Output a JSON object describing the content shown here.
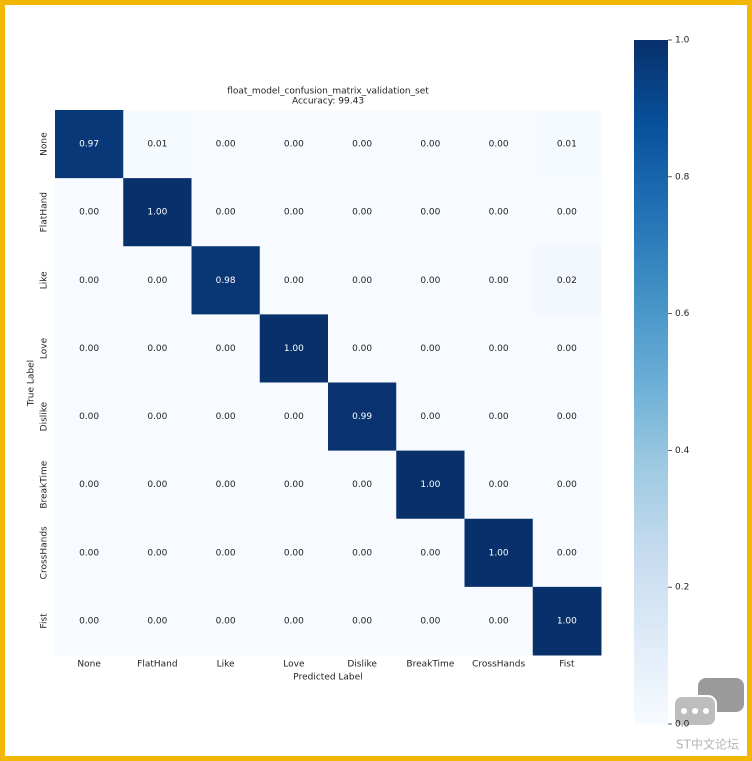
{
  "chart_data": {
    "type": "heatmap",
    "title": "float_model_confusion_matrix_validation_set",
    "subtitle": "Accuracy: 99.43",
    "x_label": "Predicted Label",
    "y_label": "True Label",
    "x_categories": [
      "None",
      "FlatHand",
      "Like",
      "Love",
      "Dislike",
      "BreakTime",
      "CrossHands",
      "Fist"
    ],
    "y_categories": [
      "None",
      "FlatHand",
      "Like",
      "Love",
      "Dislike",
      "BreakTime",
      "CrossHands",
      "Fist"
    ],
    "values": [
      [
        0.97,
        0.01,
        0,
        0,
        0,
        0,
        0,
        0.01
      ],
      [
        0,
        1,
        0,
        0,
        0,
        0,
        0,
        0
      ],
      [
        0,
        0,
        0.98,
        0,
        0,
        0,
        0,
        0.02
      ],
      [
        0,
        0,
        0,
        1,
        0,
        0,
        0,
        0
      ],
      [
        0,
        0,
        0,
        0,
        0.99,
        0,
        0,
        0
      ],
      [
        0,
        0,
        0,
        0,
        0,
        1,
        0,
        0
      ],
      [
        0,
        0,
        0,
        0,
        0,
        0,
        1,
        0
      ],
      [
        0,
        0,
        0,
        0,
        0,
        0,
        0,
        1
      ]
    ],
    "value_labels": [
      [
        "0.97",
        "0.01",
        "0.00",
        "0.00",
        "0.00",
        "0.00",
        "0.00",
        "0.01"
      ],
      [
        "0.00",
        "1.00",
        "0.00",
        "0.00",
        "0.00",
        "0.00",
        "0.00",
        "0.00"
      ],
      [
        "0.00",
        "0.00",
        "0.98",
        "0.00",
        "0.00",
        "0.00",
        "0.00",
        "0.02"
      ],
      [
        "0.00",
        "0.00",
        "0.00",
        "1.00",
        "0.00",
        "0.00",
        "0.00",
        "0.00"
      ],
      [
        "0.00",
        "0.00",
        "0.00",
        "0.00",
        "0.99",
        "0.00",
        "0.00",
        "0.00"
      ],
      [
        "0.00",
        "0.00",
        "0.00",
        "0.00",
        "0.00",
        "1.00",
        "0.00",
        "0.00"
      ],
      [
        "0.00",
        "0.00",
        "0.00",
        "0.00",
        "0.00",
        "0.00",
        "1.00",
        "0.00"
      ],
      [
        "0.00",
        "0.00",
        "0.00",
        "0.00",
        "0.00",
        "0.00",
        "0.00",
        "1.00"
      ]
    ],
    "colormap": [
      "#f7fbff",
      "#deebf7",
      "#c6dbef",
      "#9ecae1",
      "#6baed6",
      "#4292c6",
      "#2171b5",
      "#08519c",
      "#08306b"
    ],
    "zlim": [
      0,
      1
    ],
    "zticks": [
      {
        "value": 0,
        "label": "0.0"
      },
      0.2,
      0.4,
      0.6,
      0.8,
      {
        "value": 1,
        "label": "1.0"
      }
    ]
  },
  "watermark": "ST中文论坛"
}
